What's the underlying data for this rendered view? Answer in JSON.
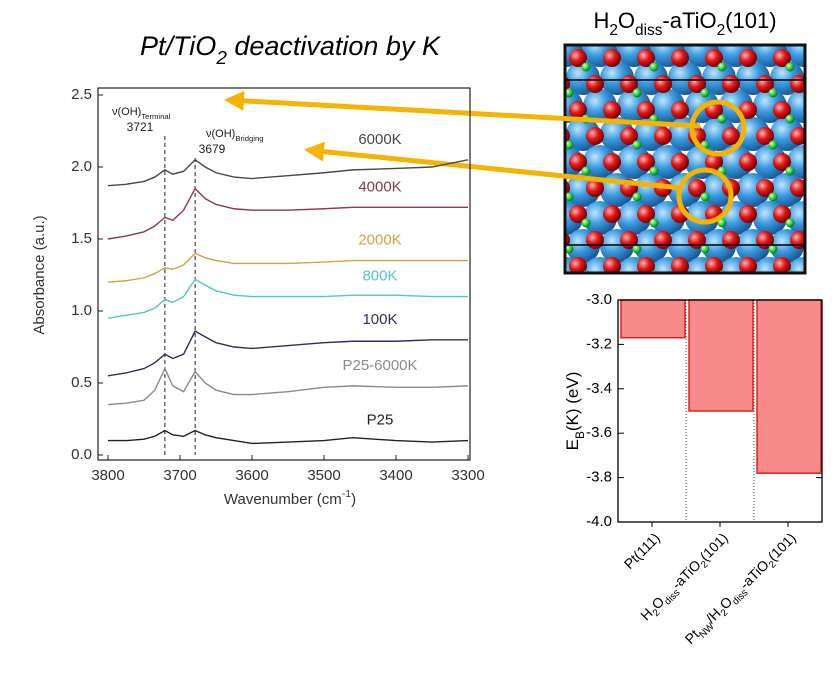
{
  "title": [
    {
      "text": "Pt/TiO"
    },
    {
      "text": "2",
      "sub": true
    },
    {
      "text": " deactivation by K"
    }
  ],
  "structure_label": [
    {
      "text": "H"
    },
    {
      "text": "2",
      "sub": true
    },
    {
      "text": "O"
    },
    {
      "text": "diss",
      "sub": true
    },
    {
      "text": "-aTiO"
    },
    {
      "text": "2",
      "sub": true
    },
    {
      "text": "(101)"
    }
  ],
  "chart_data": [
    {
      "type": "line",
      "xlabel": [
        {
          "text": "Wavenumber (cm"
        },
        {
          "text": "-1",
          "sup": true
        },
        {
          "text": ")"
        }
      ],
      "ylabel": "Absorbance (a.u.)",
      "x": [
        3800,
        3775,
        3750,
        3735,
        3721,
        3710,
        3695,
        3679,
        3665,
        3650,
        3625,
        3600,
        3550,
        3500,
        3460,
        3400,
        3350,
        3300
      ],
      "xlim": [
        3800,
        3300
      ],
      "xticks": [
        3800,
        3700,
        3600,
        3500,
        3400,
        3300
      ],
      "ylim": [
        0,
        2.5
      ],
      "yticks": [
        {
          "value": 0,
          "label": "0.0"
        },
        {
          "value": 0.5,
          "label": "0.5"
        },
        {
          "value": 1,
          "label": "1.0"
        },
        {
          "value": 1.5,
          "label": "1.5"
        },
        {
          "value": 2,
          "label": "2.0"
        },
        {
          "value": 2.5,
          "label": "2.5"
        }
      ],
      "annotations": [
        {
          "label": [
            {
              "text": "ν(OH)"
            },
            {
              "text": "Terminal",
              "sub": true
            }
          ],
          "value": 3721
        },
        {
          "label": [
            {
              "text": "ν(OH)"
            },
            {
              "text": "Bridging",
              "sub": true
            }
          ],
          "value": 3679
        }
      ],
      "series": [
        {
          "name": "P25",
          "color": "#222222",
          "values": [
            0.1,
            0.1,
            0.11,
            0.13,
            0.17,
            0.14,
            0.13,
            0.17,
            0.14,
            0.12,
            0.1,
            0.08,
            0.09,
            0.1,
            0.12,
            0.1,
            0.09,
            0.1
          ]
        },
        {
          "name": "P25-6000K",
          "color": "#8a8a8a",
          "values": [
            0.35,
            0.36,
            0.38,
            0.45,
            0.6,
            0.48,
            0.44,
            0.58,
            0.5,
            0.45,
            0.42,
            0.42,
            0.44,
            0.47,
            0.48,
            0.47,
            0.47,
            0.48
          ]
        },
        {
          "name": "100K",
          "color": "#2e2e5c",
          "values": [
            0.55,
            0.57,
            0.6,
            0.64,
            0.7,
            0.67,
            0.7,
            0.86,
            0.82,
            0.78,
            0.75,
            0.74,
            0.76,
            0.78,
            0.79,
            0.79,
            0.8,
            0.8
          ]
        },
        {
          "name": "800K",
          "color": "#52c6c8",
          "values": [
            0.95,
            0.97,
            0.99,
            1.02,
            1.08,
            1.06,
            1.1,
            1.22,
            1.18,
            1.14,
            1.11,
            1.1,
            1.1,
            1.1,
            1.11,
            1.11,
            1.1,
            1.1
          ]
        },
        {
          "name": "2000K",
          "color": "#caa642",
          "values": [
            1.2,
            1.21,
            1.23,
            1.26,
            1.3,
            1.29,
            1.32,
            1.4,
            1.37,
            1.35,
            1.33,
            1.33,
            1.33,
            1.34,
            1.35,
            1.35,
            1.35,
            1.35
          ]
        },
        {
          "name": "4000K",
          "color": "#8c3a4c",
          "values": [
            1.5,
            1.52,
            1.55,
            1.59,
            1.65,
            1.63,
            1.7,
            1.85,
            1.78,
            1.74,
            1.71,
            1.7,
            1.7,
            1.71,
            1.72,
            1.72,
            1.72,
            1.72
          ]
        },
        {
          "name": "6000K",
          "color": "#484848",
          "values": [
            1.87,
            1.88,
            1.9,
            1.93,
            1.98,
            1.95,
            1.97,
            2.05,
            2.0,
            1.96,
            1.93,
            1.92,
            1.94,
            1.96,
            1.98,
            1.99,
            2.0,
            2.05
          ]
        }
      ]
    },
    {
      "type": "bar",
      "ylabel": [
        {
          "text": "E"
        },
        {
          "text": "B",
          "sub": true
        },
        {
          "text": "(K) (eV)"
        }
      ],
      "categories": [
        [
          {
            "text": "Pt(111)"
          }
        ],
        [
          {
            "text": "H"
          },
          {
            "text": "2",
            "sub": true
          },
          {
            "text": "O"
          },
          {
            "text": "diss",
            "sub": true
          },
          {
            "text": "-aTiO"
          },
          {
            "text": "2",
            "sub": true
          },
          {
            "text": "(101)"
          }
        ],
        [
          {
            "text": "Pt"
          },
          {
            "text": "NW",
            "sub": true
          },
          {
            "text": "/H"
          },
          {
            "text": "2",
            "sub": true
          },
          {
            "text": "O"
          },
          {
            "text": "diss",
            "sub": true
          },
          {
            "text": "-aTiO"
          },
          {
            "text": "2",
            "sub": true
          },
          {
            "text": "(101)"
          }
        ]
      ],
      "values": [
        -3.17,
        -3.5,
        -3.78
      ],
      "color": "#f88a8a",
      "ylim": [
        -4,
        -3
      ],
      "yticks": [
        {
          "value": -3,
          "label": "-3.0"
        },
        {
          "value": -3.2,
          "label": "-3.2"
        },
        {
          "value": -3.4,
          "label": "-3.4"
        },
        {
          "value": -3.6,
          "label": "-3.6"
        },
        {
          "value": -3.8,
          "label": "-3.8"
        },
        {
          "value": -4,
          "label": "-4.0"
        }
      ]
    }
  ]
}
